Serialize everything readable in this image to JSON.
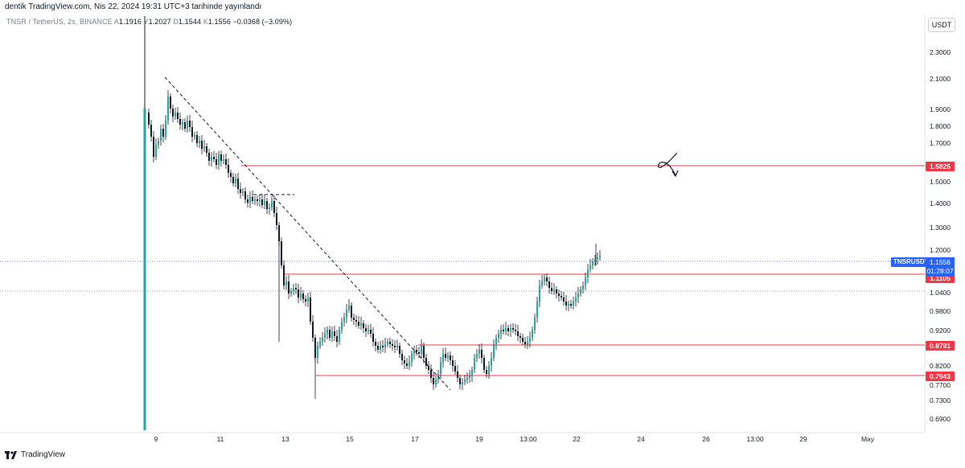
{
  "header": {
    "publisher_line": "dentik TradingView.com, Nis 22, 2024 19:31 UTC+3 tarihinde yayınlandı"
  },
  "legend": {
    "symbol": "TNSR / TetherUS, 2s, BINANCE",
    "open_label": "A",
    "open": "1.1916",
    "high_label": "Y",
    "high": "1.2027",
    "low_label": "D",
    "low": "1.1544",
    "close_label": "K",
    "close": "1.1556",
    "change": "−0.0368 (−3.09%)"
  },
  "currency_button": "USDT",
  "price_axis": [
    "2.3000",
    "2.1000",
    "1.9000",
    "1.8000",
    "1.7000",
    "1.5000",
    "1.4000",
    "1.3000",
    "1.2000",
    "1.0400",
    "0.9800",
    "0.9200",
    "0.8200",
    "0.7700",
    "0.7300",
    "0.6900"
  ],
  "time_axis": [
    "9",
    "11",
    "13",
    "15",
    "17",
    "19",
    "13:00",
    "22",
    "24",
    "26",
    "13:00",
    "29",
    "May"
  ],
  "levels": [
    {
      "price": "1.5825",
      "color": "#f23645"
    },
    {
      "price": "1.1105",
      "color": "#f23645"
    },
    {
      "price": "0.8791",
      "color": "#f23645"
    },
    {
      "price": "0.7943",
      "color": "#f23645"
    }
  ],
  "current": {
    "symbol": "TNSRUSDT",
    "price": "1.1556",
    "countdown": "01:28:07",
    "color": "#2962ff"
  },
  "colors": {
    "up": "#26a69a",
    "down": "#131722",
    "line": "#f23645"
  },
  "footer": {
    "brand": "TradingView"
  }
}
